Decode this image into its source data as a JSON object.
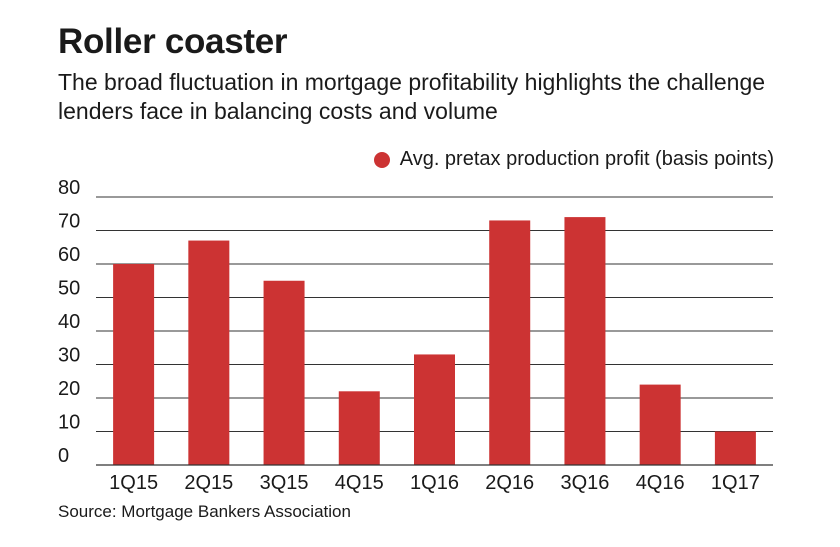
{
  "header": {
    "title": "Roller coaster",
    "subtitle": "The broad fluctuation in mortgage profitability highlights the challenge lenders face in balancing costs and volume"
  },
  "legend": {
    "label": "Avg. pretax production profit (basis points)"
  },
  "footer": {
    "source": "Source: Mortgage Bankers Association"
  },
  "colors": {
    "bar": "#cc3333",
    "grid": "#333333",
    "text": "#1a1a1a"
  },
  "chart_data": {
    "type": "bar",
    "title": "",
    "xlabel": "",
    "ylabel": "",
    "categories": [
      "1Q15",
      "2Q15",
      "3Q15",
      "4Q15",
      "1Q16",
      "2Q16",
      "3Q16",
      "4Q16",
      "1Q17"
    ],
    "series": [
      {
        "name": "Avg. pretax production profit (basis points)",
        "values": [
          60,
          67,
          55,
          22,
          33,
          73,
          74,
          24,
          10
        ]
      }
    ],
    "ylim": [
      0,
      80
    ],
    "yticks": [
      0,
      10,
      20,
      30,
      40,
      50,
      60,
      70,
      80
    ],
    "grid": true,
    "legend_position": "top-right"
  }
}
